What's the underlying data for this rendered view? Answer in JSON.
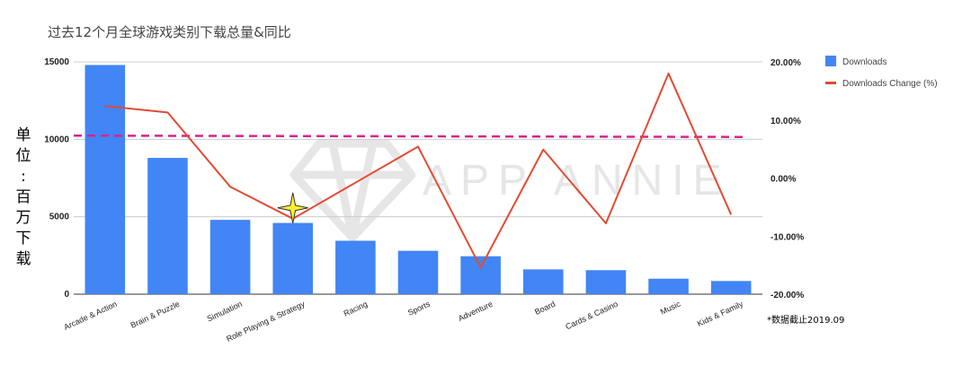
{
  "chart_data": {
    "type": "bar",
    "title": "过去12个月全球游戏类别下载总量&同比",
    "ylabel": "单位：百万下载",
    "note": "*数据截止2019.09",
    "watermark": "APP ANNIE",
    "categories": [
      "Arcade & Action",
      "Brain & Puzzle",
      "Simulation",
      "Role Playing & Strategy",
      "Racing",
      "Sports",
      "Adventure",
      "Board",
      "Cards & Casino",
      "Music",
      "Kids & Family"
    ],
    "series": [
      {
        "name": "Downloads",
        "type": "bar",
        "axis": "left",
        "color": "#4285f4",
        "values": [
          14800,
          8800,
          4800,
          4600,
          3450,
          2800,
          2450,
          1600,
          1550,
          1000,
          850
        ]
      },
      {
        "name": "Downloads Change (%)",
        "type": "line",
        "axis": "right",
        "color": "#e34a33",
        "values": [
          12.4,
          11.3,
          -1.5,
          -7.0,
          -0.8,
          5.4,
          -15.4,
          4.9,
          -7.8,
          18.0,
          -6.3
        ]
      }
    ],
    "y_left": {
      "range": [
        0,
        15000
      ],
      "ticks": [
        "0",
        "5000",
        "10000",
        "15000"
      ],
      "tick_values": [
        0,
        5000,
        10000,
        15000
      ]
    },
    "y_right": {
      "range": [
        -20,
        20
      ],
      "ticks": [
        "-20.00%",
        "-10.00%",
        "0.00%",
        "10.00%",
        "20.00%"
      ],
      "tick_values": [
        -20,
        -10,
        0,
        10,
        20
      ]
    },
    "reference_line": {
      "axis": "right",
      "value": 7.3,
      "style": "dashed",
      "color": "#d6248d"
    },
    "highlight_marker": {
      "category": "Role Playing & Strategy",
      "shape": "star",
      "color": "#ffee33"
    },
    "grid": true,
    "legend_position": "right"
  }
}
